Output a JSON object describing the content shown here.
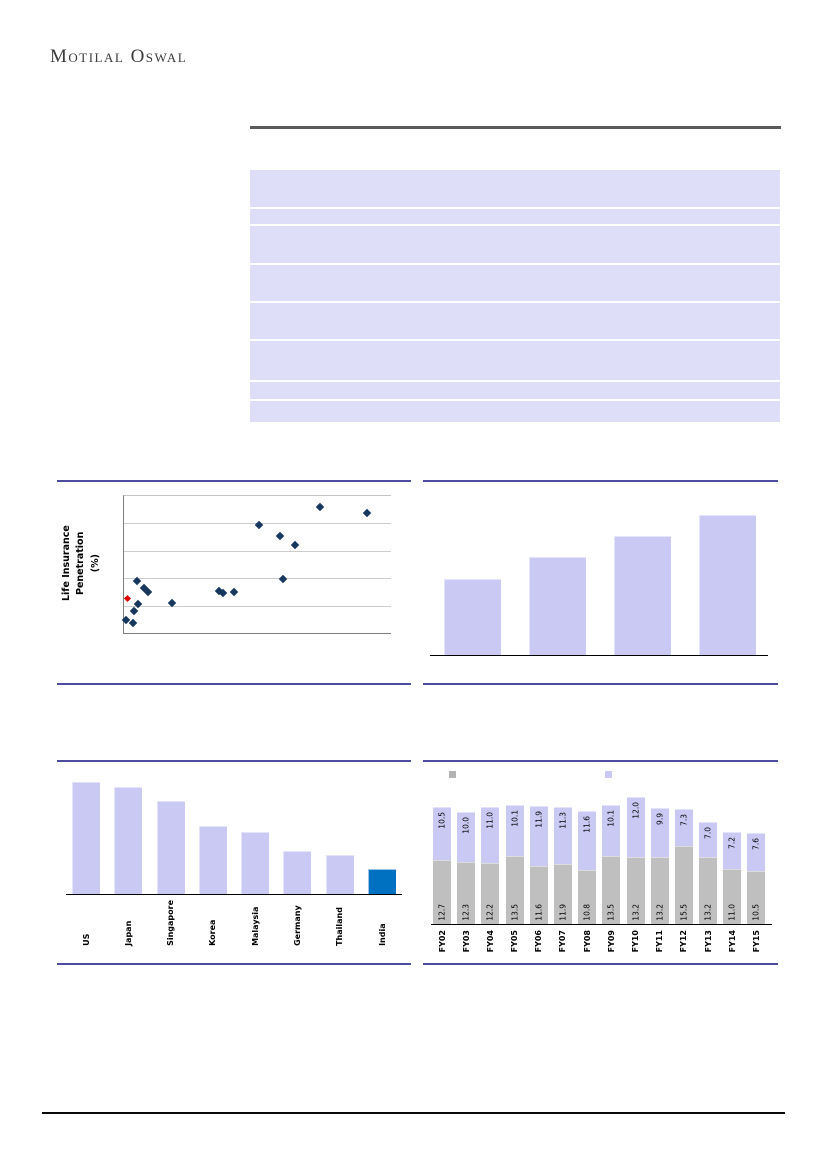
{
  "brand": {
    "name": "Motilal Oswal",
    "wordmark": {
      "part1": "Motilal",
      "part2": "Oswal"
    }
  },
  "table": {
    "note": "lavender table block with 8 empty rows, no visible text"
  },
  "chart_data": [
    {
      "id": "life-insurance-penetration-scatter",
      "type": "scatter",
      "title": "",
      "xlabel": "",
      "ylabel": "Life Insurance Penetration (%)",
      "ylabel_lines": [
        "Life Insurance Penetration",
        "(%)"
      ],
      "axis_tick_labels_visible": false,
      "grid": true,
      "marker": "diamond",
      "colors": {
        "default": "#17375E",
        "highlight": "#DE0000"
      },
      "points_pct_of_plot": [
        {
          "x": 73.3,
          "y": 92.2
        },
        {
          "x": 90.9,
          "y": 87.8
        },
        {
          "x": 50.6,
          "y": 79.1
        },
        {
          "x": 58.3,
          "y": 70.8
        },
        {
          "x": 64.1,
          "y": 64.0
        },
        {
          "x": 59.6,
          "y": 39.6
        },
        {
          "x": 5.0,
          "y": 38.0
        },
        {
          "x": 7.4,
          "y": 32.8
        },
        {
          "x": 8.9,
          "y": 29.9
        },
        {
          "x": 5.4,
          "y": 20.9
        },
        {
          "x": 17.9,
          "y": 22.1
        },
        {
          "x": 3.8,
          "y": 16.1
        },
        {
          "x": 0.9,
          "y": 9.3
        },
        {
          "x": 3.2,
          "y": 7.5
        },
        {
          "x": 35.6,
          "y": 30.7
        },
        {
          "x": 36.9,
          "y": 29.4
        },
        {
          "x": 41.2,
          "y": 30.1
        }
      ],
      "highlight_point_pct_of_plot": {
        "x": 1.5,
        "y": 25.8
      }
    },
    {
      "id": "rising-four-bars",
      "type": "bar",
      "title": "",
      "categories": [
        "",
        "",
        "",
        ""
      ],
      "values_relative": [
        54,
        70,
        85,
        100
      ],
      "data_labels_visible": false,
      "bar_color": "#C9C9F3"
    },
    {
      "id": "country-comparison-bars",
      "type": "bar",
      "title": "",
      "categories": [
        "US",
        "Japan",
        "Singapore",
        "Korea",
        "Malaysia",
        "Germany",
        "Thailand",
        "India"
      ],
      "values_relative": [
        100,
        95.8,
        83.6,
        61.2,
        55.2,
        38.8,
        34.9,
        22.4
      ],
      "data_labels_visible": false,
      "bar_color": "#C9C9F3",
      "highlight_category": "India",
      "highlight_color": "#0070C0"
    },
    {
      "id": "fy-stacked-bars",
      "type": "bar",
      "stacked": true,
      "title": "",
      "categories": [
        "FY02",
        "FY03",
        "FY04",
        "FY05",
        "FY06",
        "FY07",
        "FY08",
        "FY09",
        "FY10",
        "FY11",
        "FY12",
        "FY13",
        "FY14",
        "FY15"
      ],
      "series": [
        {
          "name": "bottom-gray-series",
          "color": "#BFBFBF",
          "values": [
            12.7,
            12.3,
            12.2,
            13.5,
            11.6,
            11.9,
            10.8,
            13.5,
            13.2,
            13.2,
            15.5,
            13.2,
            11.0,
            10.5
          ],
          "labels": [
            "12.7",
            "12.3",
            "12.2",
            "13.5",
            "11.6",
            "11.9",
            "10.8",
            "13.5",
            "13.2",
            "13.2",
            "15.5",
            "13.2",
            "11.0",
            "10.5"
          ]
        },
        {
          "name": "top-lavender-series",
          "color": "#C9C9F3",
          "values": [
            10.5,
            10.0,
            11.0,
            10.1,
            11.9,
            11.3,
            11.6,
            10.1,
            12.0,
            9.9,
            7.3,
            7.0,
            7.2,
            7.6
          ],
          "labels": [
            "10.5",
            "10.0",
            "11.0",
            "10.1",
            "11.9",
            "11.3",
            "11.6",
            "10.1",
            "12.0",
            "9.9",
            "7.3",
            "7.0",
            "7.2",
            "7.6"
          ]
        }
      ],
      "legend": {
        "position": "top",
        "labels_visible": false,
        "swatches": [
          {
            "color": "#B3B3B3"
          },
          {
            "color": "#C9C9F3"
          }
        ]
      }
    }
  ],
  "colors": {
    "table_row": "#DEDEF8",
    "section_line": "#4D4D9E",
    "top_rule": "#5A5A5A",
    "bottom_rule": "#0A0A0A"
  }
}
